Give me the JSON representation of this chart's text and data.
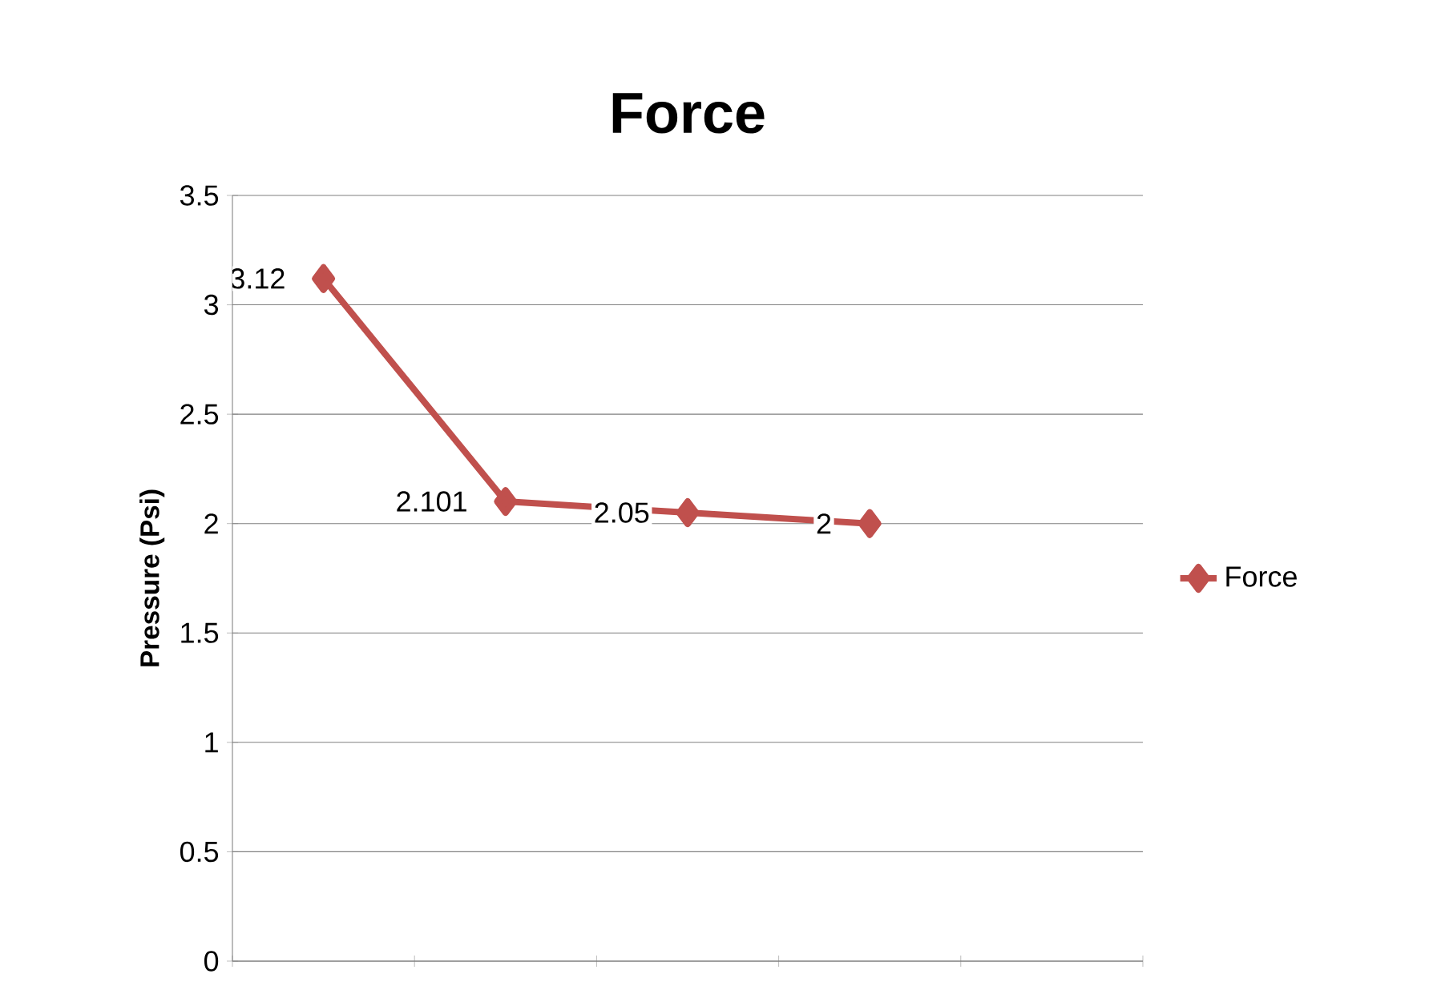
{
  "chart_data": {
    "type": "line",
    "title": "Force",
    "ylabel": "Pressure (Psi)",
    "categories": [
      null,
      null,
      null,
      null,
      null
    ],
    "series": [
      {
        "name": "Force",
        "color": "#c0504d",
        "values": [
          3.12,
          2.101,
          2.05,
          2,
          null
        ],
        "value_labels": [
          "3.12",
          "2.101",
          "2.05",
          "2",
          null
        ]
      }
    ],
    "ylim": [
      0,
      3.5
    ],
    "yticks": [
      0,
      0.5,
      1,
      1.5,
      2,
      2.5,
      3,
      3.5
    ],
    "grid": "y",
    "legend": "right",
    "marker": "diamond",
    "line_style": "solid",
    "data_labels": true
  }
}
